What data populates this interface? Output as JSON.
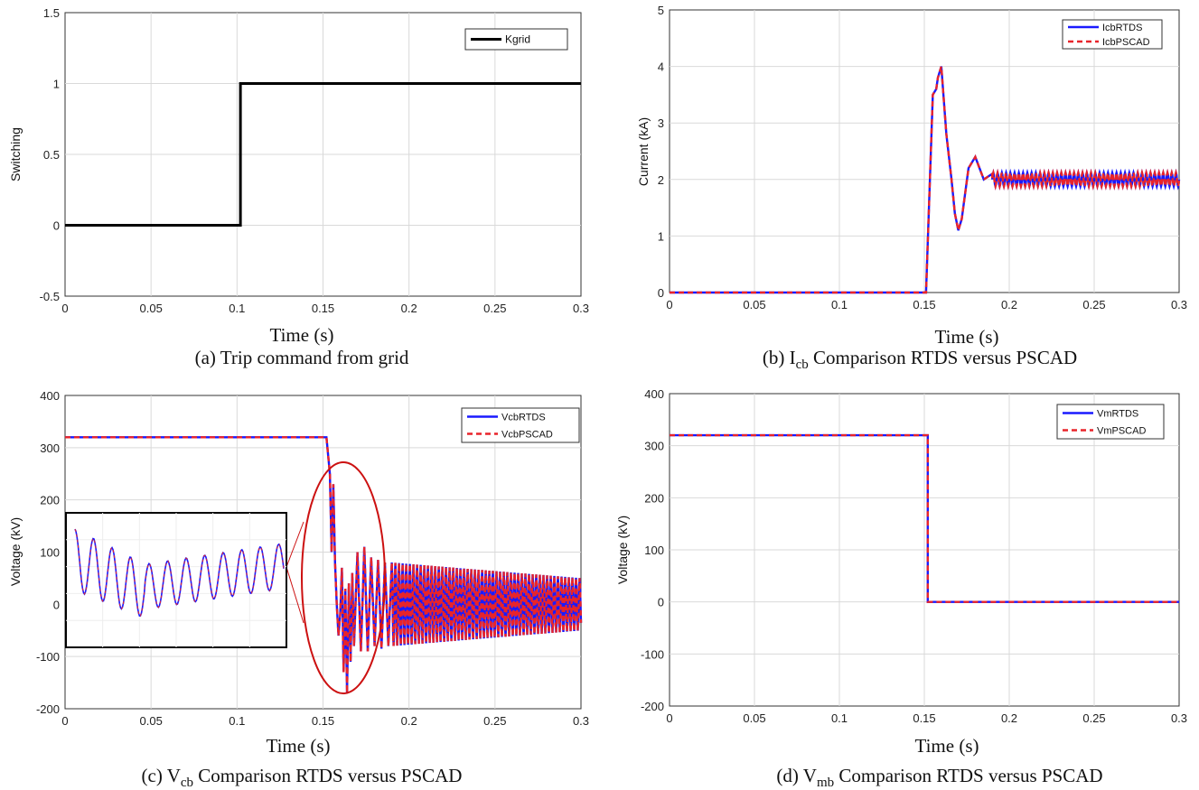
{
  "colors": {
    "rtds": "#1a1aff",
    "pscad": "#e8242a",
    "step": "#000000",
    "grid": "#d9d9d9",
    "ellipse": "#cc1111"
  },
  "chart_data": [
    {
      "id": "a",
      "type": "line",
      "caption": "(a) Trip command from grid",
      "xlabel": "Time (s)",
      "ylabel": "Switching",
      "xlim": [
        0,
        0.3
      ],
      "ylim": [
        -0.5,
        1.5
      ],
      "xticks": [
        "0",
        "0.05",
        "0.1",
        "0.15",
        "0.2",
        "0.25",
        "0.3"
      ],
      "yticks": [
        "-0.5",
        "0",
        "0.5",
        "1",
        "1.5"
      ],
      "grid": true,
      "legend_position": "top-right",
      "series": [
        {
          "name": "Kgrid",
          "x": [
            0,
            0.102,
            0.102,
            0.3
          ],
          "y": [
            0,
            0,
            1,
            1
          ]
        }
      ]
    },
    {
      "id": "b",
      "type": "line",
      "caption_main": "(b) I",
      "caption_sub": "cb",
      "caption_rest": " Comparison RTDS versus PSCAD",
      "xlabel": "Time (s)",
      "ylabel": "Current (kA)",
      "xlim": [
        0,
        0.3
      ],
      "ylim": [
        0,
        5
      ],
      "xticks": [
        "0",
        "0.05",
        "0.1",
        "0.15",
        "0.2",
        "0.25",
        "0.3"
      ],
      "yticks": [
        "0",
        "1",
        "2",
        "3",
        "4",
        "5"
      ],
      "grid": true,
      "legend_position": "top-right",
      "series_names": [
        "IcbRTDS",
        "IcbPSCAD"
      ],
      "key_points": {
        "x": [
          0,
          0.151,
          0.155,
          0.157,
          0.158,
          0.16,
          0.163,
          0.166,
          0.168,
          0.17,
          0.172,
          0.176,
          0.18,
          0.185,
          0.19,
          0.3
        ],
        "y": [
          0,
          0,
          3.5,
          3.6,
          3.8,
          4.0,
          2.8,
          2.0,
          1.4,
          1.1,
          1.3,
          2.2,
          2.4,
          2.0,
          2.1,
          2.0
        ]
      },
      "oscillation": {
        "start": 0.19,
        "end": 0.3,
        "center": 2.0,
        "amplitude": 0.12,
        "period": 0.0025
      }
    },
    {
      "id": "c",
      "type": "line",
      "caption_main": "(c) V",
      "caption_sub": "cb",
      "caption_rest": " Comparison RTDS versus PSCAD",
      "xlabel": "Time (s)",
      "ylabel": "Voltage (kV)",
      "xlim": [
        0,
        0.3
      ],
      "ylim": [
        -200,
        400
      ],
      "xticks": [
        "0",
        "0.05",
        "0.1",
        "0.15",
        "0.2",
        "0.25",
        "0.3"
      ],
      "yticks": [
        "-200",
        "-100",
        "0",
        "100",
        "200",
        "300",
        "400"
      ],
      "grid": true,
      "legend_position": "top-right",
      "series_names": [
        "VcbRTDS",
        "VcbPSCAD"
      ],
      "pre_fault": {
        "x_end": 0.152,
        "y": 320
      },
      "transient": {
        "x": [
          0.152,
          0.154,
          0.155,
          0.156,
          0.157,
          0.158,
          0.159,
          0.16,
          0.161,
          0.162,
          0.163,
          0.164,
          0.165,
          0.166,
          0.167,
          0.168,
          0.17,
          0.172,
          0.174,
          0.176,
          0.178,
          0.18,
          0.182,
          0.184,
          0.186,
          0.188,
          0.19
        ],
        "y": [
          320,
          250,
          100,
          230,
          80,
          0,
          -60,
          -20,
          70,
          -130,
          30,
          -170,
          40,
          -110,
          60,
          -80,
          100,
          -90,
          110,
          -90,
          90,
          -80,
          85,
          -85,
          80,
          -80,
          80
        ]
      },
      "oscillation": {
        "start": 0.19,
        "end": 0.3,
        "center": 0,
        "amp_start": 80,
        "amp_end": 50,
        "period": 0.0021
      }
    },
    {
      "id": "d",
      "type": "line",
      "caption_main": "(d) V",
      "caption_sub": "mb",
      "caption_rest": " Comparison RTDS versus PSCAD",
      "xlabel": "Time (s)",
      "ylabel": "Voltage (kV)",
      "xlim": [
        0,
        0.3
      ],
      "ylim": [
        -200,
        400
      ],
      "xticks": [
        "0",
        "0.05",
        "0.1",
        "0.15",
        "0.2",
        "0.25",
        "0.3"
      ],
      "yticks": [
        "-200",
        "-100",
        "0",
        "100",
        "200",
        "300",
        "400"
      ],
      "grid": true,
      "legend_position": "top-right",
      "series": [
        {
          "name": "VmRTDS",
          "x": [
            0,
            0.152,
            0.152,
            0.3
          ],
          "y": [
            320,
            320,
            0,
            0
          ]
        },
        {
          "name": "VmPSCAD",
          "x": [
            0,
            0.152,
            0.152,
            0.3
          ],
          "y": [
            320,
            320,
            0,
            0
          ]
        }
      ]
    }
  ]
}
